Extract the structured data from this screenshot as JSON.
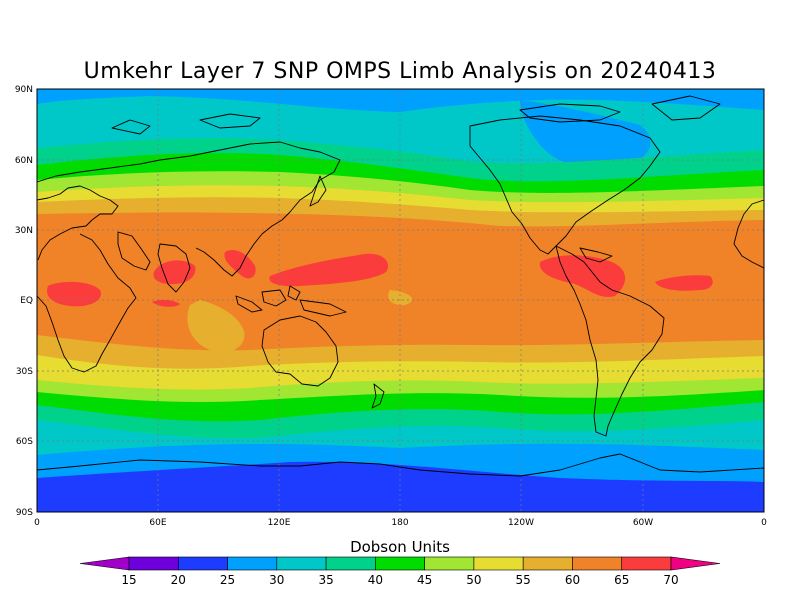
{
  "title": "Umkehr Layer 7 SNP OMPS Limb Analysis on 20240413",
  "lat_labels": [
    "90N",
    "60N",
    "30N",
    "EQ",
    "30S",
    "60S",
    "90S"
  ],
  "lon_labels": [
    "0",
    "60E",
    "120E",
    "180",
    "120W",
    "60W",
    "0"
  ],
  "colorbar": {
    "title": "Dobson Units",
    "levels": [
      "15",
      "20",
      "25",
      "30",
      "35",
      "40",
      "45",
      "50",
      "55",
      "60",
      "65",
      "70"
    ],
    "colors": [
      "#a000c8",
      "#6e00dc",
      "#1e3cff",
      "#00a0ff",
      "#00c8c8",
      "#00d28c",
      "#00dc00",
      "#a0e632",
      "#e6dc32",
      "#e6af2d",
      "#f08228",
      "#fa3c3c",
      "#f00082"
    ]
  },
  "map": {
    "projection": "cylindrical equidistant",
    "lat_range": [
      -90,
      90
    ],
    "lon_range": [
      0,
      360
    ],
    "grid": true
  }
}
